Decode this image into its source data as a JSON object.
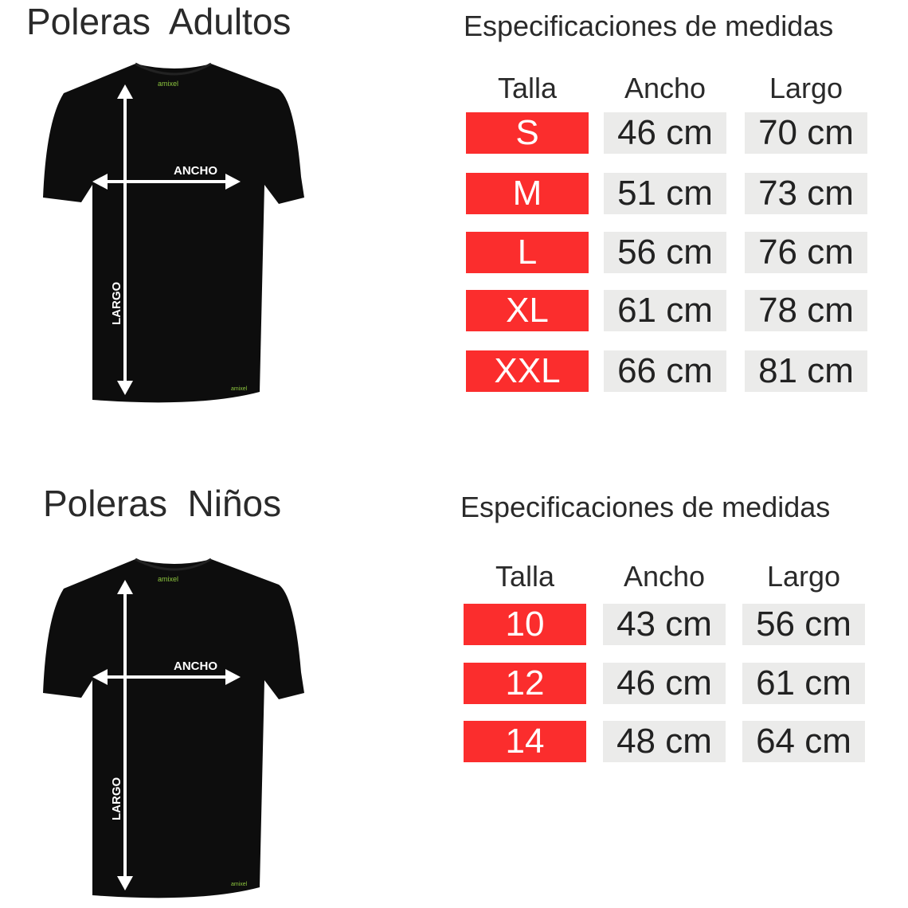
{
  "adults": {
    "title": "Poleras  Adultos",
    "spec_title": "Especificaciones de medidas",
    "headers": [
      "Talla",
      "Ancho",
      "Largo"
    ],
    "rows": [
      {
        "size": "S",
        "ancho": "46 cm",
        "largo": "70 cm"
      },
      {
        "size": "M",
        "ancho": "51 cm",
        "largo": "73 cm"
      },
      {
        "size": "L",
        "ancho": "56 cm",
        "largo": "76 cm"
      },
      {
        "size": "XL",
        "ancho": "61 cm",
        "largo": "78 cm"
      },
      {
        "size": "XXL",
        "ancho": "66 cm",
        "largo": "81 cm"
      }
    ],
    "diagram": {
      "width_label": "ANCHO",
      "length_label": "LARGO",
      "logo": "amixel"
    }
  },
  "kids": {
    "title": "Poleras  Niños",
    "spec_title": "Especificaciones de medidas",
    "headers": [
      "Talla",
      "Ancho",
      "Largo"
    ],
    "rows": [
      {
        "size": "10",
        "ancho": "43 cm",
        "largo": "56 cm"
      },
      {
        "size": "12",
        "ancho": "46 cm",
        "largo": "61 cm"
      },
      {
        "size": "14",
        "ancho": "48 cm",
        "largo": "64 cm"
      }
    ],
    "diagram": {
      "width_label": "ANCHO",
      "length_label": "LARGO",
      "logo": "amixel"
    }
  },
  "colors": {
    "size_cell": "#fb2d2d",
    "value_cell": "#ebebea",
    "shirt": "#0d0d0d",
    "logo": "#8dc63f"
  }
}
